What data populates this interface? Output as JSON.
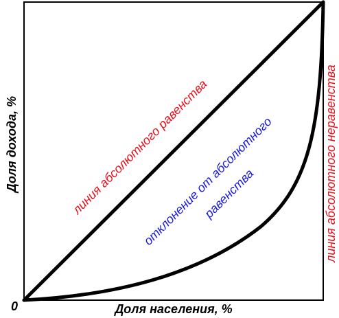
{
  "diagram": {
    "x_axis_label": "Доля населения, %",
    "y_axis_label": "Доля дохода, %",
    "origin_label": "0",
    "equality_line_label": "линия абсолютного равенства",
    "deviation_label_line1": "отклонение от  абсолютного",
    "deviation_label_line2": "равенства",
    "inequality_line_label": "линия абсолютного неравенства"
  },
  "colors": {
    "lines": "#000000",
    "equality_label": "#e8101a",
    "deviation_label": "#1a1ad6",
    "inequality_label": "#e8101a"
  }
}
